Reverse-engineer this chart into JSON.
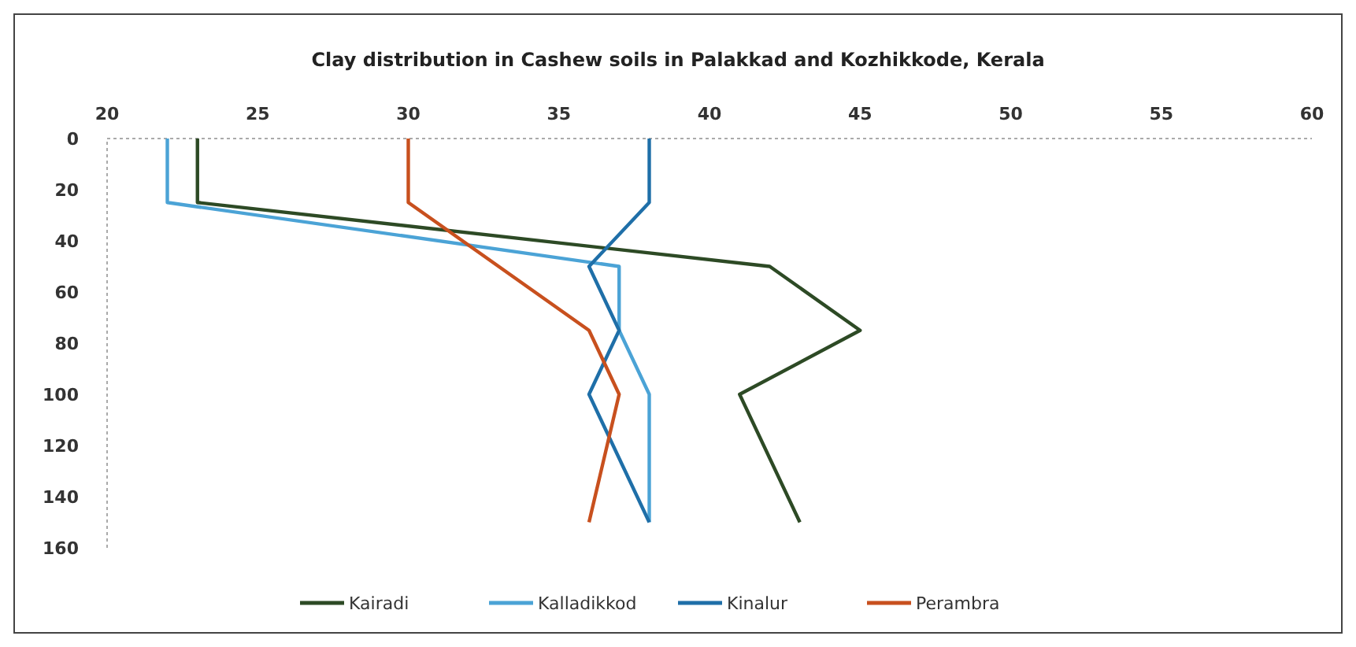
{
  "chart_data": {
    "type": "line",
    "title": "Clay distribution in Cashew soils in  Palakkad and Kozhikkode, Kerala",
    "xlim": [
      20,
      60
    ],
    "xticks": [
      20,
      25,
      30,
      35,
      40,
      45,
      50,
      55,
      60
    ],
    "ylim": [
      160,
      0
    ],
    "yticks": [
      0,
      20,
      40,
      60,
      80,
      100,
      120,
      140,
      160
    ],
    "series": [
      {
        "name": "Kairadi",
        "color": "#2d4a25",
        "x": [
          23,
          23,
          42,
          45,
          41,
          43
        ],
        "values": [
          0,
          25,
          50,
          75,
          100,
          150
        ]
      },
      {
        "name": "Kalladikkod",
        "color": "#4ba3d6",
        "x": [
          22,
          22,
          37,
          37,
          38,
          38
        ],
        "values": [
          0,
          25,
          50,
          75,
          100,
          150
        ]
      },
      {
        "name": "Kinalur",
        "color": "#1f6fa8",
        "x": [
          38,
          38,
          36,
          37,
          36,
          38
        ],
        "values": [
          0,
          25,
          50,
          75,
          100,
          150
        ]
      },
      {
        "name": "Perambra",
        "color": "#c8501e",
        "x": [
          30,
          30,
          33,
          36,
          37,
          36
        ],
        "values": [
          0,
          25,
          50,
          75,
          100,
          150
        ]
      }
    ],
    "legend": "bottom",
    "grid": false,
    "marker": "none",
    "line_style": "solid"
  }
}
